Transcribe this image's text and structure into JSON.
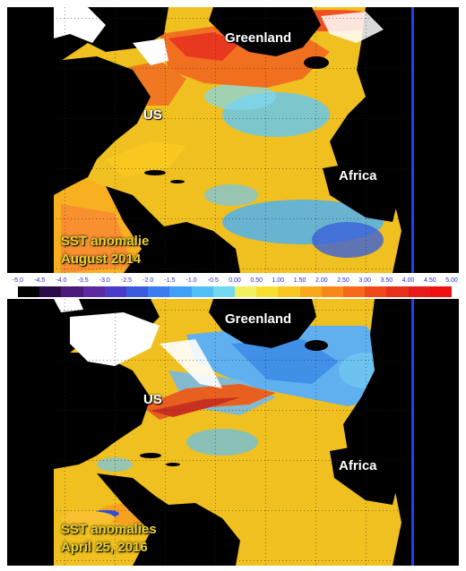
{
  "top_map": {
    "labels": {
      "greenland": "Greenland",
      "us": "US",
      "africa": "Africa"
    },
    "caption_line1": "SST anomalie",
    "caption_line2": "August 2014"
  },
  "bottom_map": {
    "labels": {
      "greenland": "Greenland",
      "us": "US",
      "africa": "Africa"
    },
    "caption_line1": "SST anomalies",
    "caption_line2": "April 25, 2016"
  },
  "colorbar": {
    "ticks": [
      "-5.0",
      "-4.5",
      "-4.0",
      "-3.5",
      "-3.0",
      "-2.5",
      "-2.0",
      "-1.5",
      "-1.0",
      "-0.5",
      "0.00",
      "0.50",
      "1.00",
      "1.50",
      "2.00",
      "2.50",
      "3.00",
      "3.50",
      "4.00",
      "4.50",
      "5.00"
    ],
    "colors": [
      "#000000",
      "#2b0a4a",
      "#4a1a7a",
      "#5b2aa0",
      "#4a3cc8",
      "#3a5ae0",
      "#3a7ef0",
      "#40a0f8",
      "#50c0f8",
      "#70d8f0",
      "#f0f060",
      "#f8e030",
      "#f8c820",
      "#f8a818",
      "#f88818",
      "#f86818",
      "#f04818",
      "#e83018",
      "#e81a1a",
      "#f01010"
    ]
  }
}
